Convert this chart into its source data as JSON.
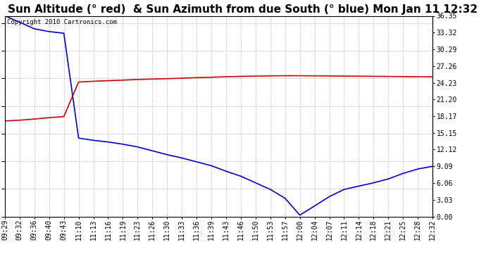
{
  "title": "Sun Altitude (° red)  & Sun Azimuth from due South (° blue) Mon Jan 11 12:32",
  "copyright": "Copyright 2010 Cartronics.com",
  "y_right_ticks": [
    0.0,
    3.03,
    6.06,
    9.09,
    12.12,
    15.15,
    18.17,
    21.2,
    24.23,
    27.26,
    30.29,
    33.32,
    36.35
  ],
  "x_labels": [
    "09:29",
    "09:32",
    "09:36",
    "09:40",
    "09:43",
    "11:10",
    "11:13",
    "11:16",
    "11:19",
    "11:23",
    "11:26",
    "11:30",
    "11:33",
    "11:36",
    "11:39",
    "11:43",
    "11:46",
    "11:50",
    "11:53",
    "11:57",
    "12:00",
    "12:04",
    "12:07",
    "12:11",
    "12:14",
    "12:18",
    "12:21",
    "12:25",
    "12:28",
    "12:32"
  ],
  "blue_y": [
    36.35,
    35.2,
    34.0,
    33.5,
    33.2,
    14.2,
    13.8,
    13.5,
    13.1,
    12.6,
    11.9,
    11.2,
    10.6,
    9.9,
    9.2,
    8.2,
    7.3,
    6.1,
    4.9,
    3.3,
    0.25,
    1.9,
    3.6,
    4.9,
    5.5,
    6.1,
    6.8,
    7.8,
    8.6,
    9.09
  ],
  "red_y": [
    17.3,
    17.45,
    17.65,
    17.9,
    18.1,
    24.35,
    24.5,
    24.6,
    24.7,
    24.82,
    24.9,
    24.97,
    25.05,
    25.15,
    25.22,
    25.32,
    25.38,
    25.43,
    25.47,
    25.5,
    25.5,
    25.48,
    25.46,
    25.43,
    25.41,
    25.39,
    25.37,
    25.34,
    25.32,
    25.3
  ],
  "background_color": "#ffffff",
  "plot_bg_color": "#ffffff",
  "grid_color": "#bbbbbb",
  "blue_color": "#0000cc",
  "red_color": "#cc0000",
  "title_fontsize": 11,
  "tick_fontsize": 7,
  "copyright_fontsize": 6.5,
  "ymin": 0.0,
  "ymax": 36.35
}
